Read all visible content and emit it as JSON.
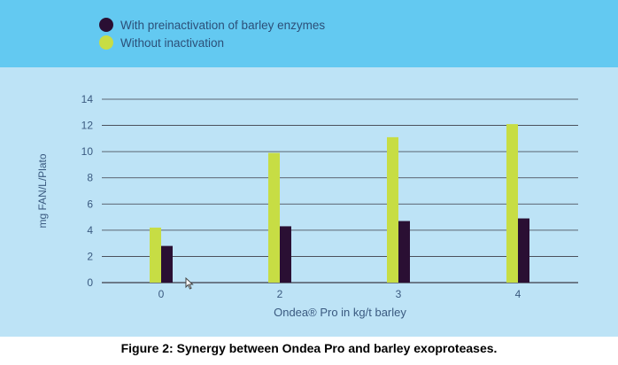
{
  "colors": {
    "band": "#63c9f1",
    "plot_bg": "#bde3f6",
    "with_preinactivation": "#2a0f33",
    "without_inactivation": "#c7dd44",
    "grid": "#3c3c46",
    "axis_text": "#3a5a80"
  },
  "caption": "Figure 2: Synergy between Ondea Pro and barley exoproteases.",
  "chart_data": {
    "type": "bar",
    "title": "",
    "xlabel": "Ondea® Pro in kg/t barley",
    "ylabel": "mg FAN/L/Plato",
    "ylim": [
      0,
      14
    ],
    "yticks": [
      "0",
      "2",
      "4",
      "6",
      "8",
      "10",
      "12",
      "14"
    ],
    "grid": true,
    "legend_position": "top-left",
    "categories": [
      "0",
      "2",
      "3",
      "4"
    ],
    "series": [
      {
        "name": "With preinactivation of barley enzymes",
        "color": "#2a0f33",
        "values": [
          2.8,
          4.3,
          4.7,
          4.9
        ]
      },
      {
        "name": "Without inactivation",
        "color": "#c7dd44",
        "values": [
          4.2,
          9.9,
          11.1,
          12.1
        ]
      }
    ]
  }
}
